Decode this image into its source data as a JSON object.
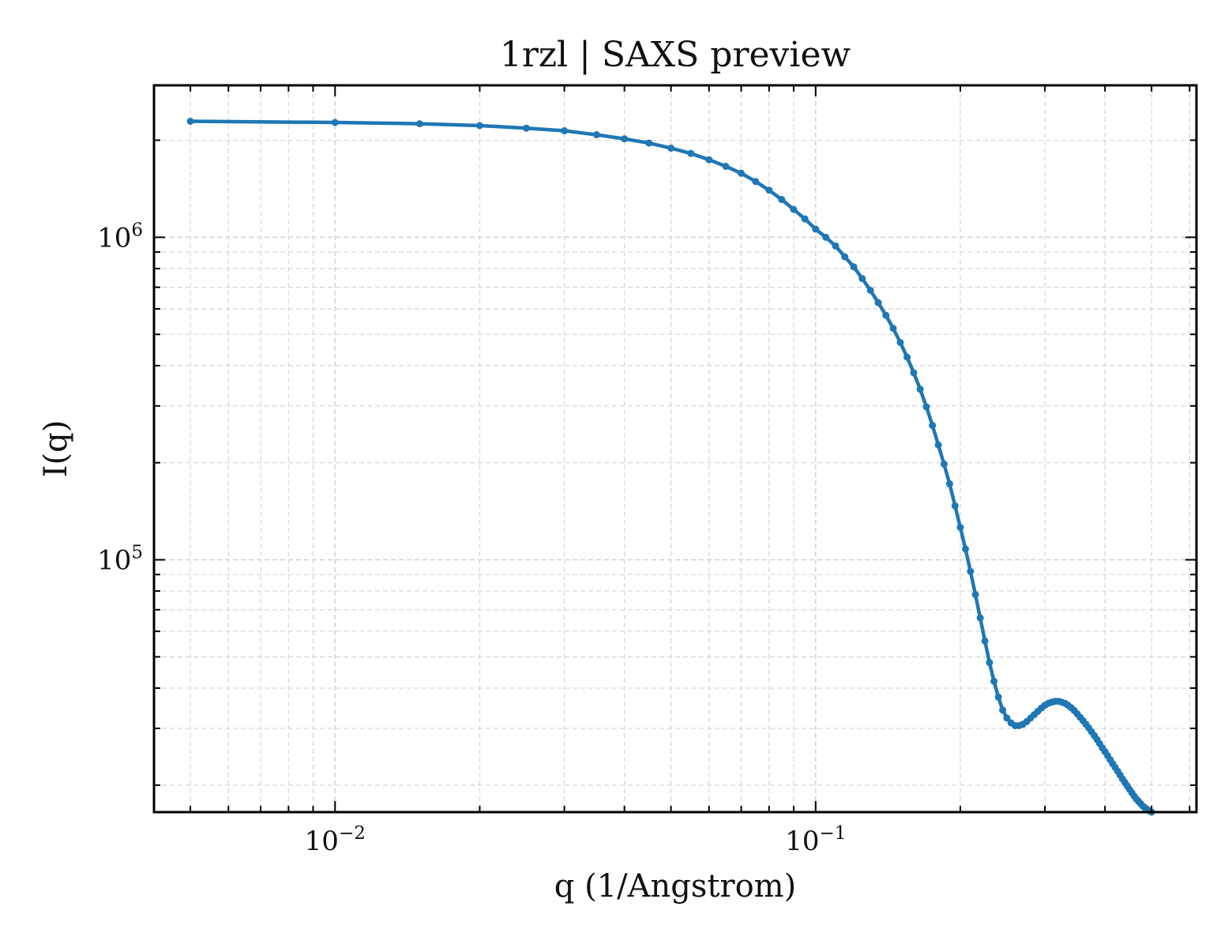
{
  "chart_data": {
    "type": "line",
    "title": "1rzl | SAXS preview",
    "xlabel": "q (1/Angstrom)",
    "ylabel": "I(q)",
    "xscale": "log",
    "yscale": "log",
    "xlim": [
      0.0042,
      0.62
    ],
    "ylim": [
      16500,
      2960000
    ],
    "grid": true,
    "legend": "none",
    "x_ticks": [
      {
        "value": 0.01,
        "base": "10",
        "exp": "−2"
      },
      {
        "value": 0.1,
        "base": "10",
        "exp": "−1"
      }
    ],
    "y_ticks": [
      {
        "value": 100000,
        "base": "10",
        "exp": "5"
      },
      {
        "value": 1000000,
        "base": "10",
        "exp": "6"
      }
    ],
    "colors": {
      "series": "#1f77b4",
      "grid": "#d3d3d3",
      "axes": "#000000"
    },
    "series": [
      {
        "x": [
          0.005,
          0.01,
          0.015,
          0.02,
          0.025,
          0.03,
          0.035,
          0.04,
          0.045,
          0.05,
          0.055,
          0.06,
          0.065,
          0.07,
          0.075,
          0.08,
          0.085,
          0.09,
          0.095,
          0.1,
          0.105,
          0.11,
          0.115,
          0.12,
          0.125,
          0.13,
          0.135,
          0.14,
          0.145,
          0.15,
          0.155,
          0.16,
          0.165,
          0.17,
          0.175,
          0.18,
          0.185,
          0.19,
          0.195,
          0.2,
          0.205,
          0.21,
          0.215,
          0.22,
          0.225,
          0.23,
          0.235,
          0.24,
          0.245,
          0.25,
          0.255,
          0.26,
          0.265,
          0.27,
          0.275,
          0.28,
          0.285,
          0.29,
          0.295,
          0.3,
          0.305,
          0.31,
          0.315,
          0.32,
          0.325,
          0.33,
          0.335,
          0.34,
          0.345,
          0.35,
          0.355,
          0.36,
          0.365,
          0.37,
          0.375,
          0.38,
          0.385,
          0.39,
          0.395,
          0.4,
          0.405,
          0.41,
          0.415,
          0.42,
          0.425,
          0.43,
          0.435,
          0.44,
          0.445,
          0.45,
          0.455,
          0.46,
          0.465,
          0.47,
          0.475,
          0.48,
          0.485,
          0.49,
          0.495,
          0.5
        ],
        "y": [
          2290000,
          2270000,
          2250000,
          2220000,
          2180000,
          2140000,
          2080000,
          2020000,
          1960000,
          1890000,
          1820000,
          1740000,
          1660000,
          1580000,
          1490000,
          1400000,
          1310000,
          1220000,
          1140000,
          1060000,
          1000000,
          940000,
          870000,
          810000,
          745000,
          685000,
          627000,
          573000,
          522000,
          472000,
          425000,
          380000,
          338000,
          298000,
          261000,
          227000,
          198000,
          172000,
          147000,
          126000,
          108000,
          92000,
          78000,
          66000,
          56000,
          48000,
          42000,
          37500,
          34200,
          32300,
          31200,
          30600,
          30600,
          30900,
          31500,
          32300,
          33100,
          33900,
          34700,
          35400,
          35900,
          36200,
          36400,
          36400,
          36200,
          35900,
          35400,
          34800,
          34100,
          33300,
          32500,
          31700,
          30900,
          30100,
          29300,
          28500,
          27700,
          26900,
          26100,
          25400,
          24700,
          24000,
          23300,
          22700,
          22100,
          21500,
          20900,
          20400,
          19900,
          19400,
          18950,
          18500,
          18100,
          17800,
          17500,
          17200,
          17000,
          16800,
          16650,
          16500
        ]
      }
    ]
  }
}
